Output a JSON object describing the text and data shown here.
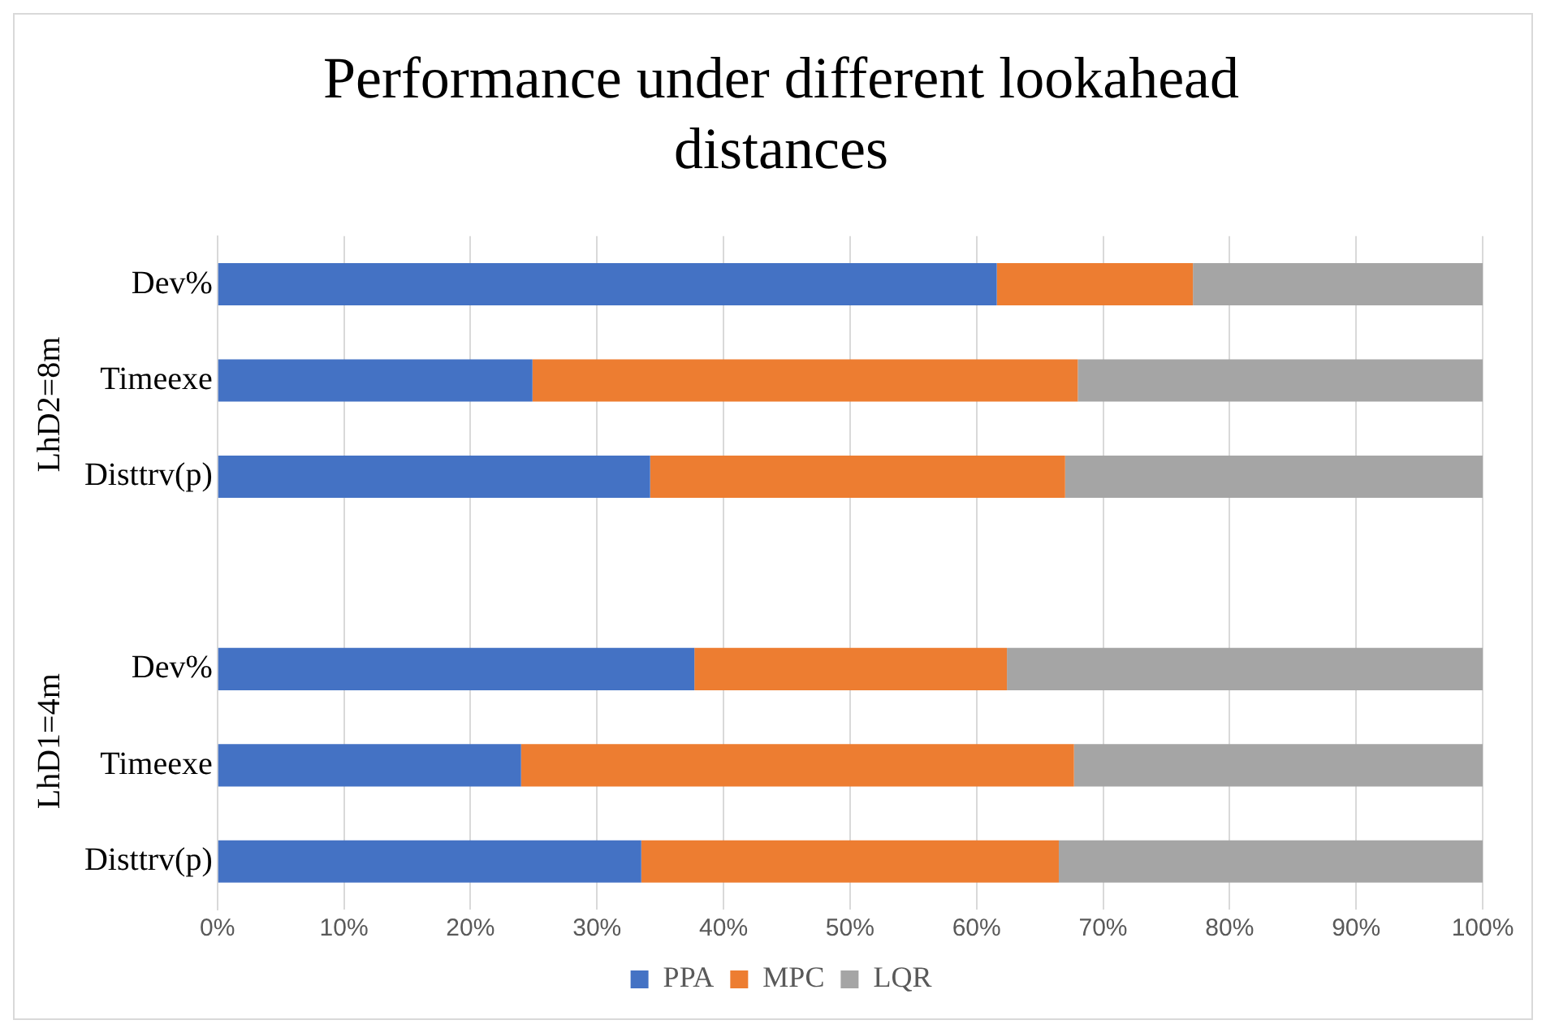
{
  "chart_data": {
    "type": "bar",
    "orientation": "horizontal",
    "stacked": true,
    "title": "Performance under different lookahead distances",
    "categories": [
      "Dev%",
      "Timeexe",
      "Disttrv(p)",
      null,
      "Dev%",
      "Timeexe",
      "Disttrv(p)"
    ],
    "series": [
      {
        "name": "PPA",
        "color": "#4472c4",
        "values": [
          61.6,
          24.9,
          34.2,
          null,
          37.7,
          24.0,
          33.5
        ]
      },
      {
        "name": "MPC",
        "color": "#ed7d31",
        "values": [
          15.5,
          43.1,
          32.8,
          null,
          24.7,
          43.7,
          33.0
        ]
      },
      {
        "name": "LQR",
        "color": "#a5a5a5",
        "values": [
          22.9,
          32.0,
          33.0,
          null,
          37.6,
          32.3,
          33.5
        ]
      }
    ],
    "xlim": [
      0,
      100
    ],
    "xticks": [
      {
        "value": 0,
        "label": "0%"
      },
      {
        "value": 10,
        "label": "10%"
      },
      {
        "value": 20,
        "label": "20%"
      },
      {
        "value": 30,
        "label": "30%"
      },
      {
        "value": 40,
        "label": "40%"
      },
      {
        "value": 50,
        "label": "50%"
      },
      {
        "value": 60,
        "label": "60%"
      },
      {
        "value": 70,
        "label": "70%"
      },
      {
        "value": 80,
        "label": "80%"
      },
      {
        "value": 90,
        "label": "90%"
      },
      {
        "value": 100,
        "label": "100%"
      }
    ],
    "annotations": [
      "LhD2=8m",
      "LhD1=4m"
    ],
    "grid": "x",
    "legend": "bottom"
  }
}
